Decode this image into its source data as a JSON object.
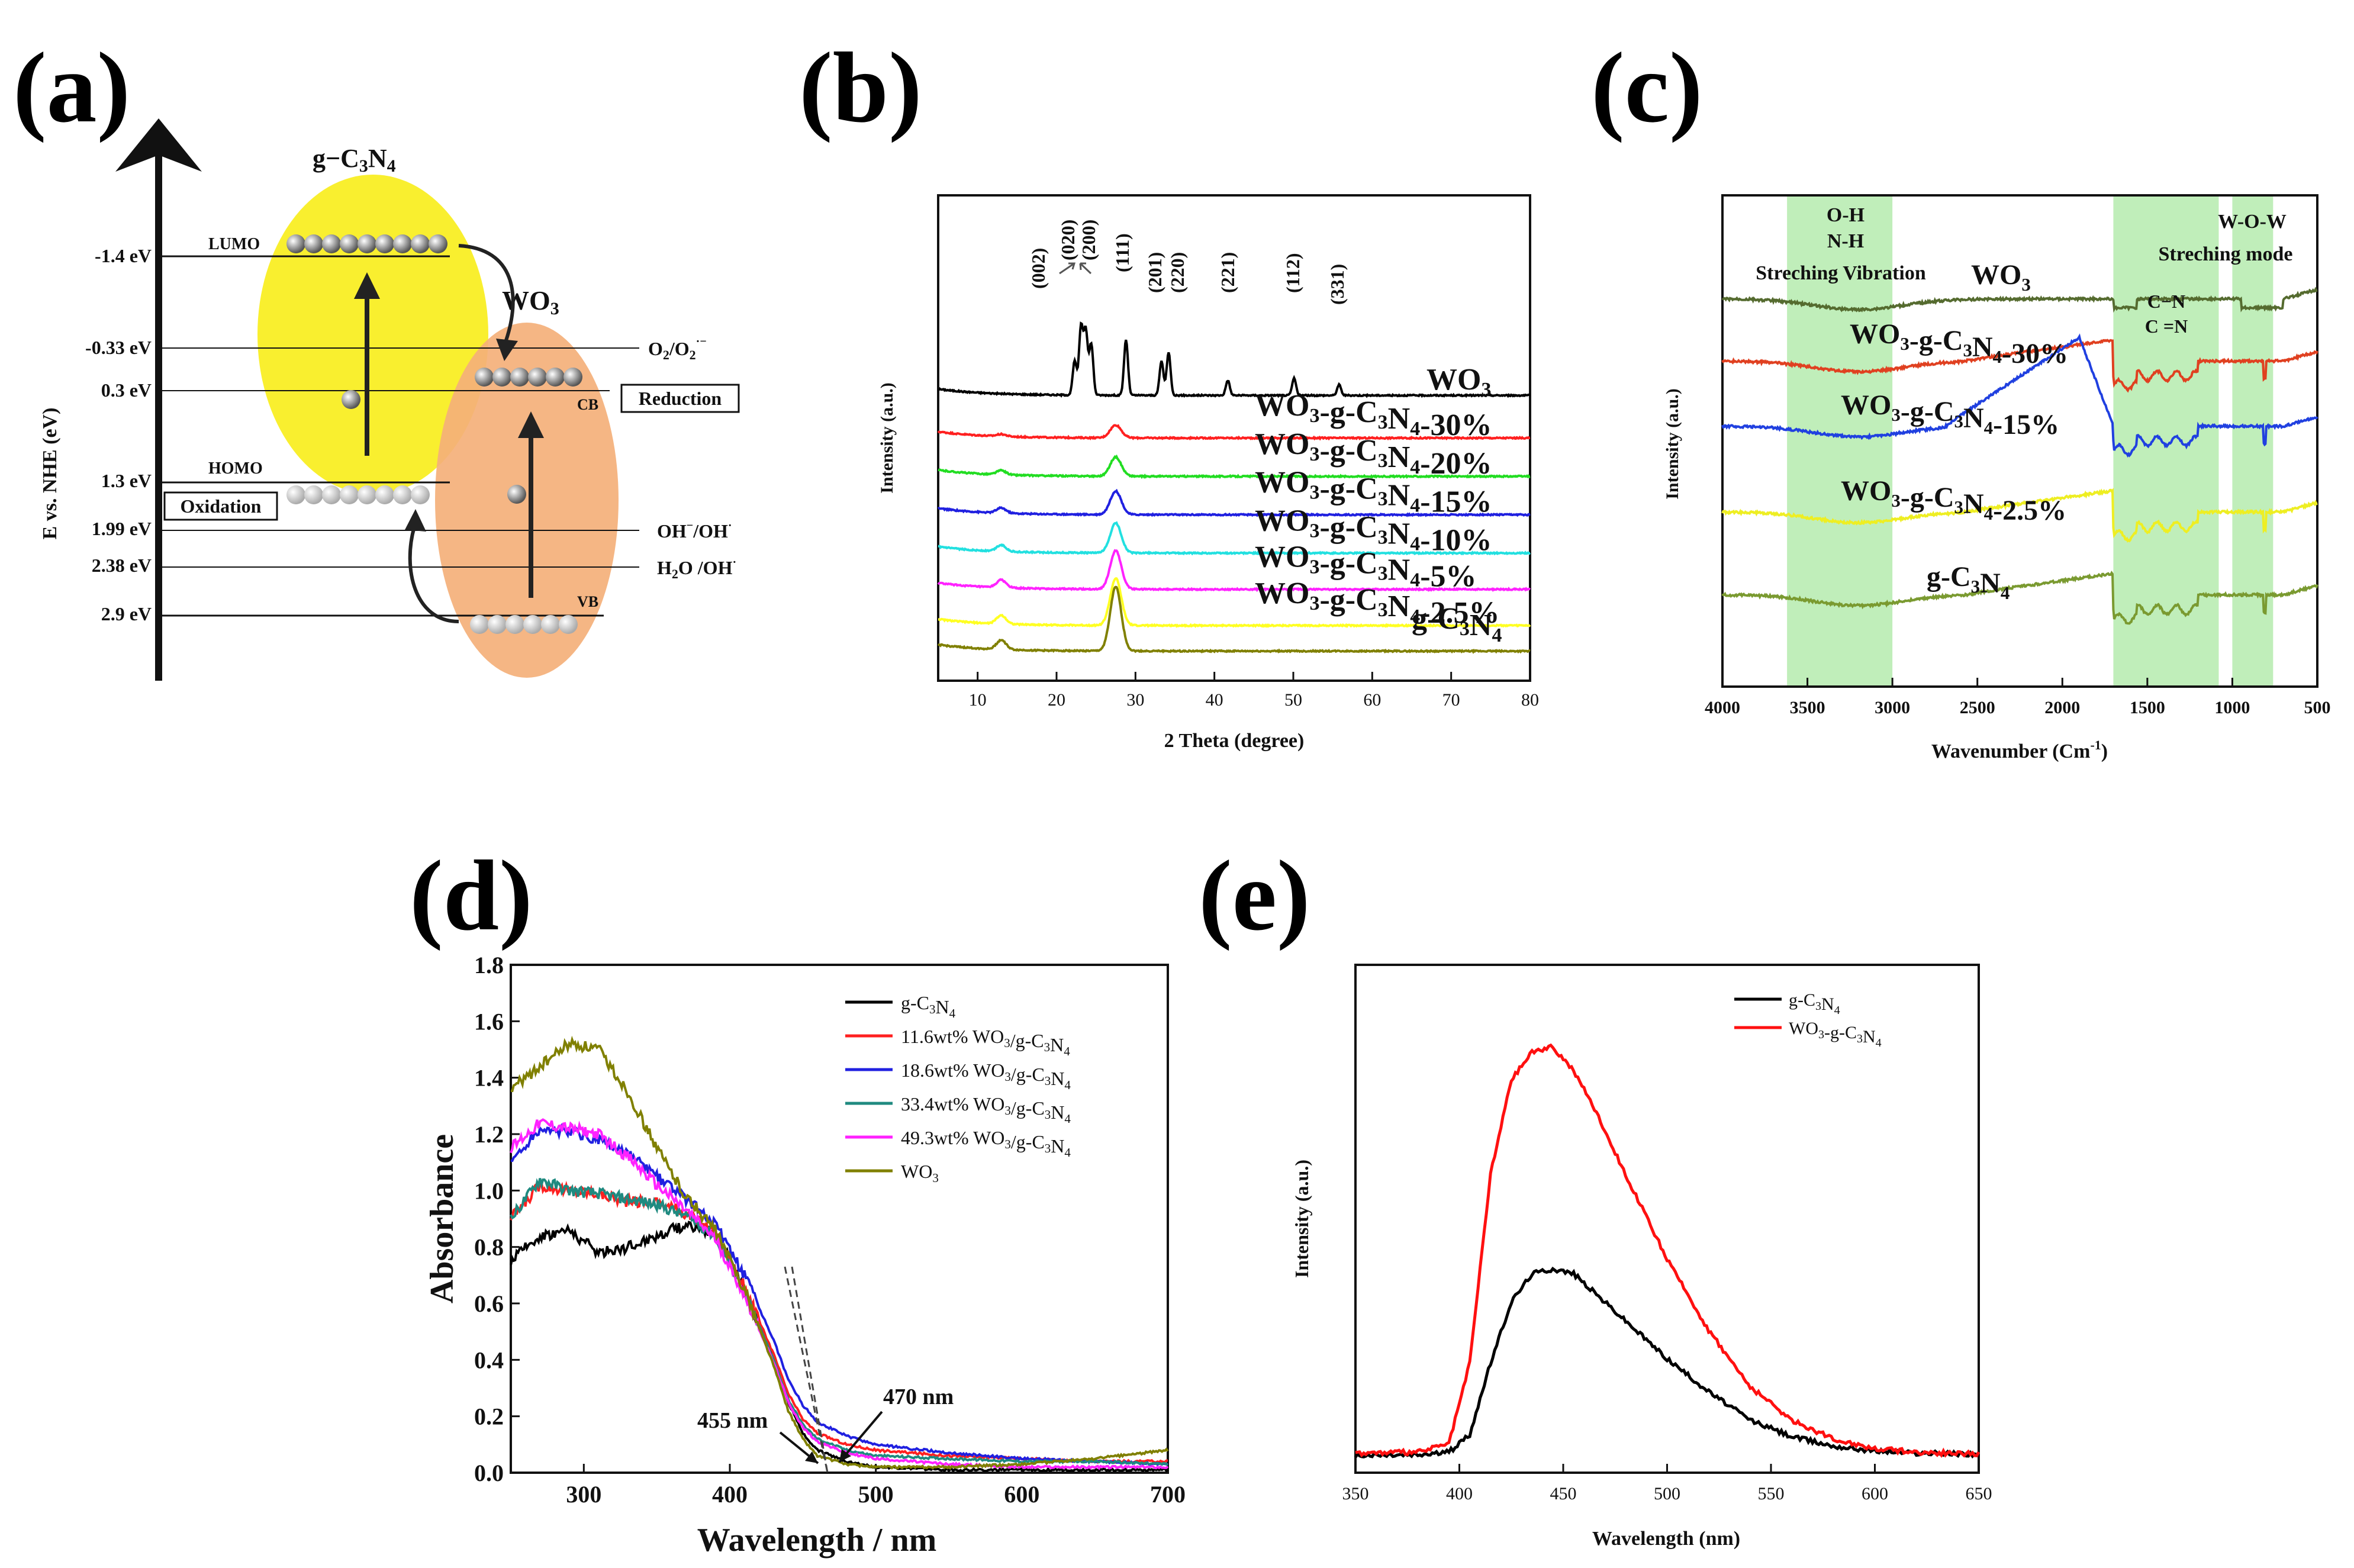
{
  "panels": {
    "a": {
      "letter": "(a)",
      "axis_label": "E vs. NHE (eV)",
      "gcn_title_pre": "g−C",
      "gcn_title_s1": "3",
      "gcn_title_mid": "N",
      "gcn_title_s2": "4",
      "wo3_title_pre": "WO",
      "wo3_title_sub": "3",
      "lumo": "LUMO",
      "homo": "HOMO",
      "cb": "CB",
      "vb": "VB",
      "reduction": "Reduction",
      "oxidation": "Oxidation",
      "energy_levels": [
        "-1.4 eV",
        "-0.33 eV",
        "0.3 eV",
        "1.3 eV",
        "1.99 eV",
        "2.38 eV",
        "2.9 eV"
      ],
      "redox": {
        "o2_pre": "O",
        "o2_s1": "2",
        "o2_mid": "/O",
        "o2_s2": "2",
        "o2_sup": "·−",
        "oh_pre": "OH",
        "oh_sup1": "−",
        "oh_mid": "/OH",
        "oh_sup2": "·",
        "h2o_pre": "H",
        "h2o_s": "2",
        "h2o_mid": "O /OH",
        "h2o_sup": "·"
      },
      "colors": {
        "gcn_ellipse": "#f9ef2f",
        "wo3_ellipse": "#f4b07a"
      }
    },
    "b": {
      "letter": "(b)",
      "ylabel": "Intensity (a.u.)",
      "xlabel": "2 Theta (degree)",
      "peak_labels": [
        "(002)",
        "(020)",
        "(200)",
        "(111)",
        "(201)",
        "(220)",
        "(221)",
        "(112)",
        "(331)"
      ]
    },
    "c": {
      "letter": "(c)",
      "ylabel": "Intensity (a.u.)",
      "xlabel_pre": "Wavenumber (Cm",
      "xlabel_sup": "-1",
      "xlabel_post": ")",
      "band_labels": {
        "oh": "O-H",
        "nh": "N-H",
        "stretch": "Streching Vibration",
        "cn1": "C−N",
        "cn2": "C =N",
        "wow": "W-O-W",
        "mode": "Streching mode"
      }
    },
    "d": {
      "letter": "(d)",
      "ylabel": "Absorbance",
      "xlabel": "Wavelength / nm",
      "ann_455": "455 nm",
      "ann_470": "470 nm"
    },
    "e": {
      "letter": "(e)",
      "ylabel": "Intensity (a.u.)",
      "xlabel": "Wavelength (nm)"
    }
  },
  "chart_data": [
    {
      "id": "b",
      "type": "line",
      "title": "",
      "xlabel": "2 Theta (degree)",
      "ylabel": "Intensity (a.u.)",
      "xlim": [
        5,
        80
      ],
      "xticks": [
        10,
        20,
        30,
        40,
        50,
        60,
        70,
        80
      ],
      "offset_units": true,
      "series": [
        {
          "name": "WO3",
          "label_pre": "WO",
          "label_sub": "3",
          "label_post": "",
          "color": "#000000",
          "offset": 6,
          "peaks": [
            [
              22.3,
              0.8
            ],
            [
              23.1,
              1.6
            ],
            [
              23.7,
              1.5
            ],
            [
              24.4,
              1.2
            ],
            [
              28.8,
              1.3
            ],
            [
              33.3,
              0.8
            ],
            [
              34.2,
              1.0
            ],
            [
              41.7,
              0.35
            ],
            [
              50.1,
              0.4
            ],
            [
              55.8,
              0.25
            ]
          ]
        },
        {
          "name": "WO3-g-C3N4-30%",
          "label_pre": "WO",
          "label_sub": "3",
          "label_post": "-g-C",
          "label_sub2": "3",
          "label_post2": "N",
          "label_sub3": "4",
          "label_post3": "-30%",
          "color": "#ff2020",
          "offset": 5,
          "peaks": [
            [
              13,
              0.05
            ],
            [
              27.5,
              0.3
            ]
          ]
        },
        {
          "name": "WO3-g-C3N4-20%",
          "label_pre": "WO",
          "label_sub": "3",
          "label_post": "-g-C",
          "label_sub2": "3",
          "label_post2": "N",
          "label_sub3": "4",
          "label_post3": "-20%",
          "color": "#22dd22",
          "offset": 4.1,
          "peaks": [
            [
              13,
              0.1
            ],
            [
              27.5,
              0.45
            ]
          ]
        },
        {
          "name": "WO3-g-C3N4-15%",
          "label_pre": "WO",
          "label_sub": "3",
          "label_post": "-g-C",
          "label_sub2": "3",
          "label_post2": "N",
          "label_sub3": "4",
          "label_post3": "-15%",
          "color": "#2020e0",
          "offset": 3.2,
          "peaks": [
            [
              13,
              0.12
            ],
            [
              27.5,
              0.55
            ]
          ]
        },
        {
          "name": "WO3-g-C3N4-10%",
          "label_pre": "WO",
          "label_sub": "3",
          "label_post": "-g-C",
          "label_sub2": "3",
          "label_post2": "N",
          "label_sub3": "4",
          "label_post3": "-10%",
          "color": "#22e0e0",
          "offset": 2.3,
          "peaks": [
            [
              13,
              0.15
            ],
            [
              27.5,
              0.7
            ]
          ]
        },
        {
          "name": "WO3-g-C3N4-5%",
          "label_pre": "WO",
          "label_sub": "3",
          "label_post": "-g-C",
          "label_sub2": "3",
          "label_post2": "N",
          "label_sub3": "4",
          "label_post3": "-5%",
          "color": "#ff22ff",
          "offset": 1.45,
          "peaks": [
            [
              13,
              0.18
            ],
            [
              27.5,
              0.9
            ]
          ]
        },
        {
          "name": "WO3-g-C3N4-2.5%",
          "label_pre": "WO",
          "label_sub": "3",
          "label_post": "-g-C",
          "label_sub2": "3",
          "label_post2": "N",
          "label_sub3": "4",
          "label_post3": "-2.5%",
          "color": "#ffff22",
          "offset": 0.6,
          "peaks": [
            [
              13,
              0.2
            ],
            [
              27.5,
              1.1
            ]
          ]
        },
        {
          "name": "g-C3N4",
          "label_pre": "g-C",
          "label_sub": "3",
          "label_post": "N",
          "label_sub2": "4",
          "label_post2": "",
          "color": "#808000",
          "offset": 0,
          "peaks": [
            [
              13,
              0.22
            ],
            [
              27.5,
              1.5
            ]
          ]
        }
      ]
    },
    {
      "id": "c",
      "type": "line",
      "xlabel": "Wavenumber (Cm-1)",
      "ylabel": "Intensity (a.u.)",
      "xlim": [
        4000,
        500
      ],
      "xticks": [
        4000,
        3500,
        3000,
        2500,
        2000,
        1500,
        1000,
        500
      ],
      "shaded_bands": [
        [
          3620,
          3000
        ],
        [
          1700,
          1080
        ],
        [
          1000,
          760
        ]
      ],
      "series": [
        {
          "name": "WO3",
          "label_pre": "WO",
          "label_sub": "3",
          "color": "#556b2f",
          "offset": 4.2
        },
        {
          "name": "WO3-g-C3N4-30%",
          "label_pre": "WO",
          "label_sub": "3",
          "label_post": "-g-C",
          "label_sub2": "3",
          "label_post2": "N",
          "label_sub3": "4",
          "label_post3": "-30%",
          "color": "#e04020",
          "offset": 3.0
        },
        {
          "name": "WO3-g-C3N4-15%",
          "label_pre": "WO",
          "label_sub": "3",
          "label_post": "-g-C",
          "label_sub2": "3",
          "label_post2": "N",
          "label_sub3": "4",
          "label_post3": "-15%",
          "color": "#2040e0",
          "offset": 2.0
        },
        {
          "name": "WO3-g-C3N4-2.5%",
          "label_pre": "WO",
          "label_sub": "3",
          "label_post": "-g-C",
          "label_sub2": "3",
          "label_post2": "N",
          "label_sub3": "4",
          "label_post3": "-2.5%",
          "color": "#eeee22",
          "offset": 1.0
        },
        {
          "name": "g-C3N4",
          "label_pre": "g-C",
          "label_sub": "3",
          "label_post": "N",
          "label_sub2": "4",
          "color": "#7a9a30",
          "offset": 0.0
        }
      ]
    },
    {
      "id": "d",
      "type": "line",
      "xlabel": "Wavelength / nm",
      "ylabel": "Absorbance",
      "xlim": [
        250,
        700
      ],
      "ylim": [
        0,
        1.8
      ],
      "xticks": [
        300,
        400,
        500,
        600,
        700
      ],
      "yticks": [
        0.0,
        0.2,
        0.4,
        0.6,
        0.8,
        1.0,
        1.2,
        1.4,
        1.6,
        1.8
      ],
      "series": [
        {
          "name": "g-C3N4",
          "legend": [
            "g-C",
            "3",
            "N",
            "4",
            ""
          ],
          "color": "#000000",
          "x": [
            250,
            270,
            290,
            310,
            330,
            350,
            370,
            390,
            410,
            430,
            440,
            450,
            460,
            480,
            500,
            550,
            600,
            650,
            700
          ],
          "y": [
            0.75,
            0.84,
            0.86,
            0.78,
            0.8,
            0.84,
            0.88,
            0.85,
            0.65,
            0.4,
            0.25,
            0.14,
            0.08,
            0.04,
            0.02,
            0.01,
            0.01,
            0.01,
            0.01
          ]
        },
        {
          "name": "11.6wt% WO3/g-C3N4",
          "legend": [
            "11.6wt% WO",
            "3",
            "/g-C",
            "3",
            "N",
            "4"
          ],
          "color": "#ff2020",
          "x": [
            250,
            270,
            290,
            310,
            330,
            350,
            370,
            390,
            410,
            430,
            440,
            450,
            460,
            480,
            500,
            550,
            600,
            650,
            700
          ],
          "y": [
            0.9,
            1.02,
            1.0,
            0.99,
            0.96,
            0.96,
            0.92,
            0.85,
            0.66,
            0.42,
            0.28,
            0.19,
            0.14,
            0.1,
            0.08,
            0.06,
            0.05,
            0.04,
            0.04
          ]
        },
        {
          "name": "18.6wt% WO3/g-C3N4",
          "legend": [
            "18.6wt% WO",
            "3",
            "/g-C",
            "3",
            "N",
            "4"
          ],
          "color": "#2020e0",
          "x": [
            250,
            270,
            290,
            310,
            330,
            350,
            370,
            390,
            410,
            430,
            440,
            450,
            460,
            480,
            500,
            550,
            600,
            650,
            700
          ],
          "y": [
            1.1,
            1.22,
            1.21,
            1.18,
            1.13,
            1.05,
            0.97,
            0.88,
            0.7,
            0.47,
            0.33,
            0.24,
            0.18,
            0.13,
            0.1,
            0.07,
            0.05,
            0.04,
            0.03
          ]
        },
        {
          "name": "33.4wt% WO3/g-C3N4",
          "legend": [
            "33.4wt% WO",
            "3",
            "/g-C",
            "3",
            "N",
            "4"
          ],
          "color": "#1f8a80",
          "x": [
            250,
            270,
            290,
            310,
            330,
            350,
            370,
            390,
            410,
            430,
            440,
            450,
            460,
            480,
            500,
            550,
            600,
            650,
            700
          ],
          "y": [
            0.9,
            1.04,
            1.0,
            0.99,
            0.97,
            0.95,
            0.91,
            0.84,
            0.64,
            0.4,
            0.26,
            0.17,
            0.12,
            0.08,
            0.06,
            0.05,
            0.04,
            0.04,
            0.03
          ]
        },
        {
          "name": "49.3wt% WO3/g-C3N4",
          "legend": [
            "49.3wt% WO",
            "3",
            "/g-C",
            "3",
            "N",
            "4"
          ],
          "color": "#ff22ff",
          "x": [
            250,
            270,
            290,
            310,
            330,
            350,
            370,
            390,
            410,
            430,
            440,
            450,
            460,
            480,
            500,
            550,
            600,
            650,
            700
          ],
          "y": [
            1.15,
            1.24,
            1.22,
            1.2,
            1.12,
            1.02,
            0.93,
            0.83,
            0.63,
            0.39,
            0.25,
            0.16,
            0.11,
            0.07,
            0.05,
            0.03,
            0.02,
            0.02,
            0.02
          ]
        },
        {
          "name": "WO3",
          "legend": [
            "WO",
            "3",
            "",
            "",
            "",
            ""
          ],
          "color": "#808000",
          "x": [
            250,
            270,
            290,
            310,
            330,
            350,
            370,
            390,
            410,
            430,
            440,
            450,
            460,
            480,
            500,
            550,
            600,
            650,
            700
          ],
          "y": [
            1.36,
            1.44,
            1.52,
            1.5,
            1.35,
            1.15,
            0.98,
            0.86,
            0.65,
            0.38,
            0.22,
            0.12,
            0.06,
            0.03,
            0.02,
            0.02,
            0.03,
            0.05,
            0.08
          ]
        }
      ]
    },
    {
      "id": "e",
      "type": "line",
      "xlabel": "Wavelength (nm)",
      "ylabel": "Intensity (a.u.)",
      "xlim": [
        350,
        650
      ],
      "ylim": [
        0,
        1
      ],
      "xticks": [
        350,
        400,
        450,
        500,
        550,
        600,
        650
      ],
      "series": [
        {
          "name": "g-C3N4",
          "legend": [
            "g-C",
            "3",
            "N",
            "4"
          ],
          "color": "#000000",
          "x": [
            350,
            380,
            395,
            405,
            415,
            425,
            435,
            445,
            455,
            465,
            480,
            500,
            520,
            540,
            560,
            580,
            600,
            620,
            650
          ],
          "y": [
            0.005,
            0.006,
            0.012,
            0.05,
            0.2,
            0.33,
            0.39,
            0.4,
            0.39,
            0.35,
            0.29,
            0.21,
            0.14,
            0.08,
            0.045,
            0.025,
            0.015,
            0.01,
            0.008
          ]
        },
        {
          "name": "WO3-g-C3N4",
          "legend": [
            "WO",
            "3",
            "-g-C",
            "3",
            "N",
            "4"
          ],
          "color": "#ff1010",
          "x": [
            350,
            380,
            395,
            405,
            415,
            425,
            435,
            445,
            455,
            465,
            480,
            500,
            520,
            540,
            560,
            580,
            600,
            620,
            650
          ],
          "y": [
            0.01,
            0.012,
            0.03,
            0.2,
            0.6,
            0.8,
            0.86,
            0.87,
            0.82,
            0.74,
            0.6,
            0.42,
            0.27,
            0.15,
            0.08,
            0.04,
            0.02,
            0.012,
            0.008
          ]
        }
      ]
    }
  ]
}
